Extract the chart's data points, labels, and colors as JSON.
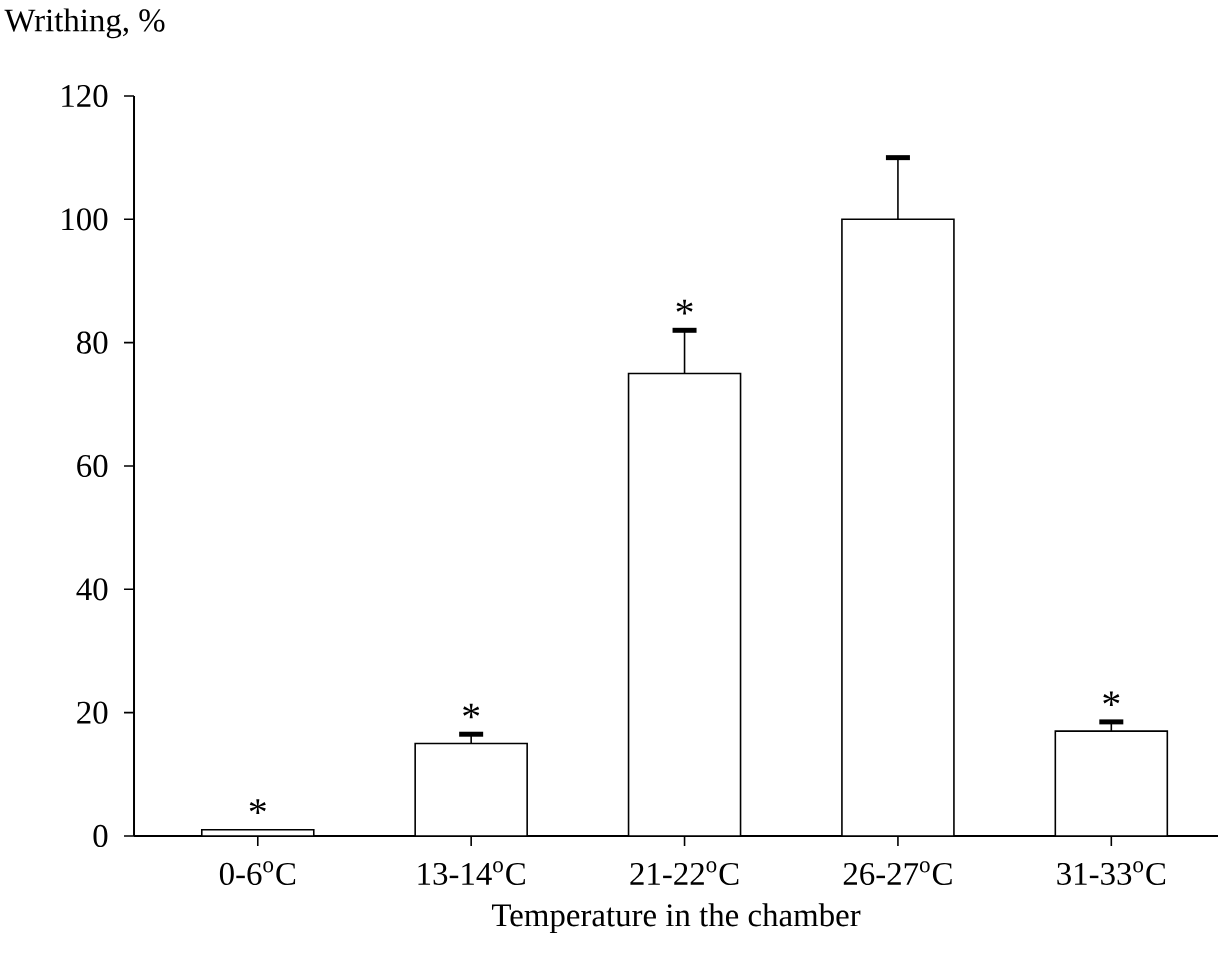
{
  "chart_data": {
    "type": "bar",
    "ylabel": "Writhing, %",
    "xlabel": "Temperature in the chamber",
    "categories": [
      "0-6$^{o}$C",
      "13-14$^{o}$C",
      "21-22$^{o}$C",
      "26-27$^{o}$C",
      "31-33$^{o}$C"
    ],
    "values": [
      1,
      15,
      75,
      100,
      17
    ],
    "errors": [
      null,
      [
        15,
        16.5
      ],
      [
        75,
        82
      ],
      [
        100,
        110
      ],
      [
        17,
        18.5
      ]
    ],
    "color": "#ffffff",
    "ylim": [
      0,
      120
    ],
    "yticks": [
      0,
      20,
      40,
      60,
      80,
      100,
      120
    ],
    "annotations": [
      {
        "text": "*",
        "x": "0-6$^{o}$C",
        "y": 1
      },
      {
        "text": "*",
        "x": "13-14$^{o}$C",
        "y": 16.5
      },
      {
        "text": "*",
        "x": "21-22$^{o}$C",
        "y": 82
      },
      {
        "text": "*",
        "x": "31-33$^{o}$C",
        "y": 18.5
      }
    ]
  }
}
